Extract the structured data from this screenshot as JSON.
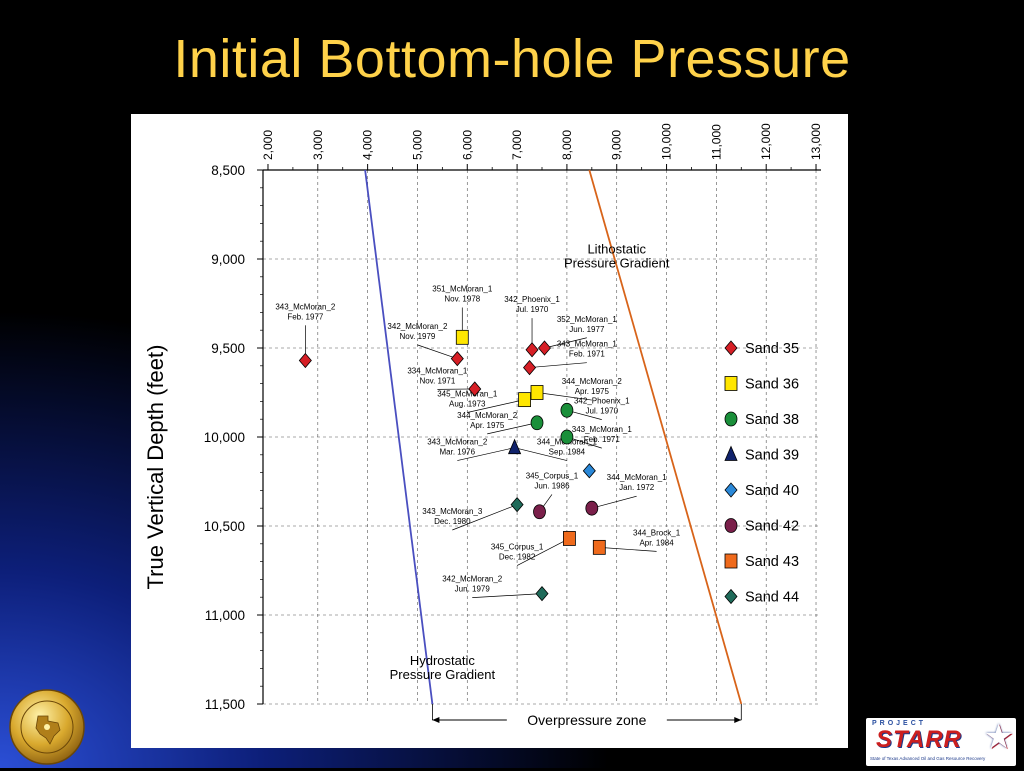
{
  "slide": {
    "title": "Initial Bottom-hole Pressure"
  },
  "chart_data": {
    "type": "scatter",
    "title": "",
    "ylabel": "True Vertical Depth (feet)",
    "xlabel": "",
    "x_axis_position": "top",
    "xlim": [
      1900,
      13100
    ],
    "ylim": [
      8500,
      11500
    ],
    "y_inverted": true,
    "x_ticks": [
      "2,000",
      "3,000",
      "4,000",
      "5,000",
      "6,000",
      "7,000",
      "8,000",
      "9,000",
      "10,000",
      "11,000",
      "12,000",
      "13,000"
    ],
    "x_tick_values": [
      2000,
      3000,
      4000,
      5000,
      6000,
      7000,
      8000,
      9000,
      10000,
      11000,
      12000,
      13000
    ],
    "y_ticks": [
      "8,500",
      "9,000",
      "9,500",
      "10,000",
      "10,500",
      "11,000",
      "11,500"
    ],
    "y_tick_values": [
      8500,
      9000,
      9500,
      10000,
      10500,
      11000,
      11500
    ],
    "grid": true,
    "legend_position": "right",
    "series": [
      {
        "name": "Sand 35",
        "marker": "diamond",
        "color": "#d61f26",
        "points": [
          [
            2750,
            9570
          ],
          [
            5800,
            9560
          ],
          [
            6150,
            9730
          ],
          [
            7300,
            9510
          ],
          [
            7550,
            9500
          ],
          [
            7250,
            9610
          ]
        ]
      },
      {
        "name": "Sand 36",
        "marker": "square",
        "color": "#ffe600",
        "points": [
          [
            5900,
            9440
          ],
          [
            7400,
            9750
          ],
          [
            7150,
            9790
          ]
        ]
      },
      {
        "name": "Sand 38",
        "marker": "circle",
        "color": "#1a8f3a",
        "points": [
          [
            7400,
            9920
          ],
          [
            8000,
            9850
          ],
          [
            8000,
            10000
          ]
        ]
      },
      {
        "name": "Sand 39",
        "marker": "triangle",
        "color": "#10226b",
        "points": [
          [
            6950,
            10060
          ]
        ]
      },
      {
        "name": "Sand 40",
        "marker": "diamond",
        "color": "#2a88d8",
        "points": [
          [
            8450,
            10190
          ]
        ]
      },
      {
        "name": "Sand 42",
        "marker": "circle",
        "color": "#7a1f4a",
        "points": [
          [
            7450,
            10420
          ],
          [
            8500,
            10400
          ]
        ]
      },
      {
        "name": "Sand 43",
        "marker": "square",
        "color": "#ef6a1c",
        "points": [
          [
            8050,
            10570
          ],
          [
            8650,
            10620
          ]
        ]
      },
      {
        "name": "Sand 44",
        "marker": "diamond",
        "color": "#1f6b5a",
        "points": [
          [
            7000,
            10380
          ],
          [
            7500,
            10880
          ]
        ]
      }
    ],
    "annotations": [
      {
        "lines": [
          "343_McMoran_2",
          "Feb. 1977"
        ],
        "point": [
          2750,
          9570
        ],
        "label_at": [
          2750,
          9350
        ]
      },
      {
        "lines": [
          "351_McMoran_1",
          "Nov. 1978"
        ],
        "point": [
          5900,
          9440
        ],
        "label_at": [
          5900,
          9250
        ]
      },
      {
        "lines": [
          "342_McMoran_2",
          "Nov. 1979"
        ],
        "point": [
          5800,
          9560
        ],
        "label_at": [
          5000,
          9460
        ]
      },
      {
        "lines": [
          "342_Phoenix_1",
          "Jul. 1970"
        ],
        "point": [
          7300,
          9510
        ],
        "label_at": [
          7300,
          9310
        ]
      },
      {
        "lines": [
          "352_McMoran_1",
          "Jun. 1977"
        ],
        "point": [
          7550,
          9500
        ],
        "label_at": [
          8400,
          9420
        ]
      },
      {
        "lines": [
          "343_McMoran_1",
          "Feb. 1971"
        ],
        "point": [
          7250,
          9610
        ],
        "label_at": [
          8400,
          9560
        ]
      },
      {
        "lines": [
          "334_McMoran_1",
          "Nov. 1971"
        ],
        "point": [
          6150,
          9730
        ],
        "label_at": [
          5400,
          9710
        ]
      },
      {
        "lines": [
          "344_McMoran_2",
          "Apr. 1975"
        ],
        "point": [
          7400,
          9750
        ],
        "label_at": [
          8500,
          9770
        ]
      },
      {
        "lines": [
          "345_McMoran_1",
          "Aug. 1973"
        ],
        "point": [
          7150,
          9790
        ],
        "label_at": [
          6000,
          9840
        ]
      },
      {
        "lines": [
          "342_Phoenix_1",
          "Jul. 1970"
        ],
        "point": [
          8000,
          9850
        ],
        "label_at": [
          8700,
          9880
        ]
      },
      {
        "lines": [
          "344_McMoran_2",
          "Apr. 1975"
        ],
        "point": [
          7400,
          9920
        ],
        "label_at": [
          6400,
          9960
        ]
      },
      {
        "lines": [
          "343_McMoran_1",
          "Feb. 1971"
        ],
        "point": [
          8000,
          10000
        ],
        "label_at": [
          8700,
          10040
        ]
      },
      {
        "lines": [
          "343_McMoran_2",
          "Mar. 1976"
        ],
        "point": [
          6950,
          10060
        ],
        "label_at": [
          5800,
          10110
        ]
      },
      {
        "lines": [
          "344_McMoran_1",
          "Sep. 1984"
        ],
        "point": [
          6950,
          10060
        ],
        "label_at": [
          8000,
          10110
        ]
      },
      {
        "lines": [
          "345_Corpus_1",
          "Jun. 1986"
        ],
        "point": [
          7450,
          10420
        ],
        "label_at": [
          7700,
          10300
        ]
      },
      {
        "lines": [
          "344_McMoran_1",
          "Jan. 1972"
        ],
        "point": [
          8500,
          10400
        ],
        "label_at": [
          9400,
          10310
        ]
      },
      {
        "lines": [
          "343_McMoran_3",
          "Dec. 1980"
        ],
        "point": [
          7000,
          10380
        ],
        "label_at": [
          5700,
          10500
        ]
      },
      {
        "lines": [
          "344_Brock_1",
          "Apr. 1984"
        ],
        "point": [
          8650,
          10620
        ],
        "label_at": [
          9800,
          10620
        ]
      },
      {
        "lines": [
          "345_Corpus_1",
          "Dec. 1982"
        ],
        "point": [
          8050,
          10570
        ],
        "label_at": [
          7000,
          10700
        ]
      },
      {
        "lines": [
          "342_McMoran_2",
          "Jun. 1979"
        ],
        "point": [
          7500,
          10880
        ],
        "label_at": [
          6100,
          10880
        ]
      }
    ],
    "gradient_lines": [
      {
        "name": "Hydrostatic Pressure Gradient",
        "lines": [
          "Hydrostatic",
          "Pressure Gradient"
        ],
        "color": "#4a4fc0",
        "from": [
          3950,
          8500
        ],
        "to": [
          5300,
          11500
        ],
        "label_at": [
          5500,
          11280
        ]
      },
      {
        "name": "Lithostatic Pressure Gradient",
        "lines": [
          "Lithostatic",
          "Pressure Gradient"
        ],
        "color": "#d8641a",
        "from": [
          8450,
          8500
        ],
        "to": [
          11500,
          11500
        ],
        "label_at": [
          9000,
          8970
        ]
      }
    ],
    "zone_label": "Overpressure zone",
    "zone_range": [
      5300,
      11500
    ]
  },
  "logos": {
    "left_seal_icon": "bureau-economic-geology-seal-icon",
    "right_logo_icon": "project-starr-logo-icon",
    "right_logo": {
      "project_text": "PROJECT",
      "brand": "STARR",
      "subtitle": "State of Texas Advanced Oil and Gas Resource Recovery"
    }
  }
}
